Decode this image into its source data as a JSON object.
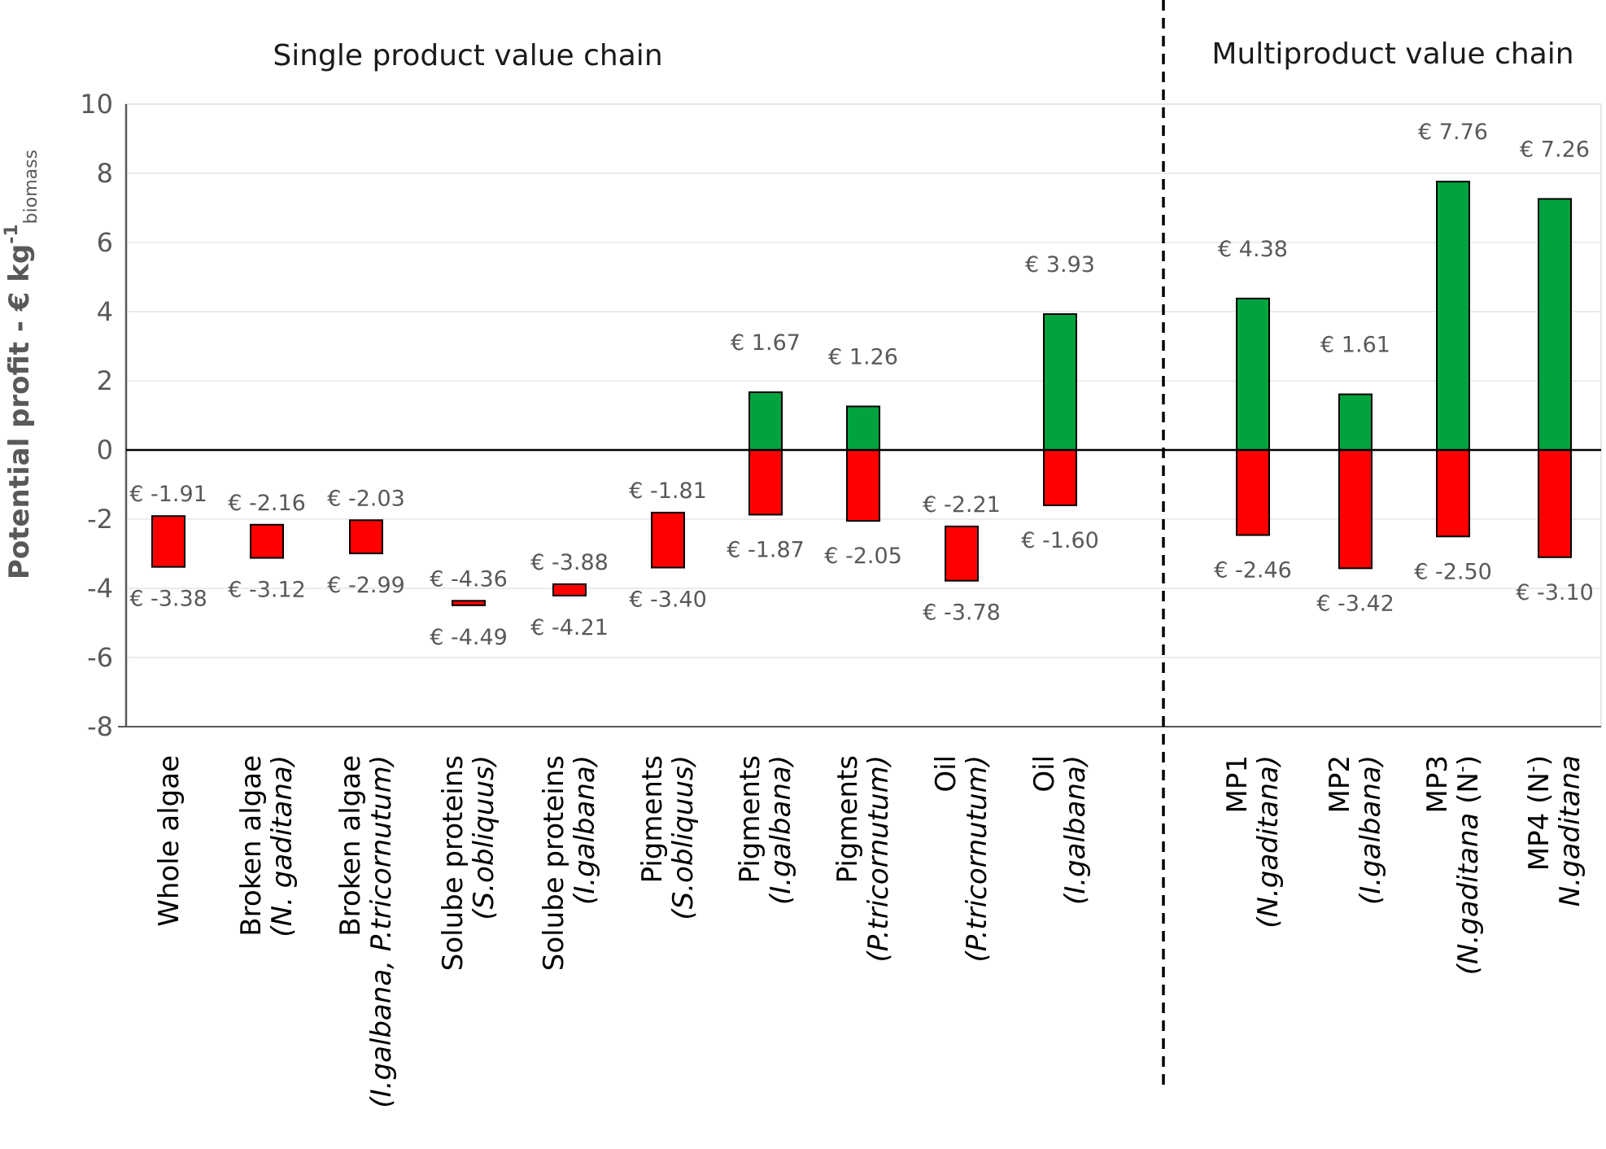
{
  "chart_data": {
    "type": "bar",
    "subtype": "floating-range",
    "ylabel": {
      "main": "Potential profit - € kg",
      "sup": "-1",
      "sub": "biomass"
    },
    "ylim": [
      -8,
      10
    ],
    "yticks": [
      10,
      8,
      6,
      4,
      2,
      0,
      -2,
      -4,
      -6,
      -8
    ],
    "currency_prefix": "€ ",
    "sections": [
      {
        "title": "Single product value chain",
        "first": 0,
        "last": 9
      },
      {
        "title": "Multiproduct value chain",
        "first": 10,
        "last": 13
      }
    ],
    "colors": {
      "positive": "#00a33d",
      "negative": "#ff0000",
      "outline": "#000000",
      "grid": "#e6e6e6",
      "axis": "#595959"
    },
    "categories": [
      {
        "lines": [
          [
            {
              "t": "Whole algae",
              "i": false
            }
          ]
        ],
        "low": -3.38,
        "high": -1.91
      },
      {
        "lines": [
          [
            {
              "t": "Broken algae",
              "i": false
            }
          ],
          [
            {
              "t": "(N. gaditana)",
              "i": true
            }
          ]
        ],
        "low": -3.12,
        "high": -2.16
      },
      {
        "lines": [
          [
            {
              "t": "Broken algae",
              "i": false
            }
          ],
          [
            {
              "t": "(I.galbana, P.tricornutum)",
              "i": true
            }
          ]
        ],
        "low": -2.99,
        "high": -2.03
      },
      {
        "lines": [
          [
            {
              "t": "Solube proteins",
              "i": false
            }
          ],
          [
            {
              "t": "(S.obliquus)",
              "i": true
            }
          ]
        ],
        "low": -4.49,
        "high": -4.36
      },
      {
        "lines": [
          [
            {
              "t": "Solube proteins",
              "i": false
            }
          ],
          [
            {
              "t": "(I.galbana)",
              "i": true
            }
          ]
        ],
        "low": -4.21,
        "high": -3.88
      },
      {
        "lines": [
          [
            {
              "t": "Pigments",
              "i": false
            }
          ],
          [
            {
              "t": "(S.obliquus)",
              "i": true
            }
          ]
        ],
        "low": -3.4,
        "high": -1.81
      },
      {
        "lines": [
          [
            {
              "t": "Pigments",
              "i": false
            }
          ],
          [
            {
              "t": "(I.galbana)",
              "i": true
            }
          ]
        ],
        "low": -1.87,
        "high": 1.67
      },
      {
        "lines": [
          [
            {
              "t": "Pigments",
              "i": false
            }
          ],
          [
            {
              "t": "(P.tricornutum)",
              "i": true
            }
          ]
        ],
        "low": -2.05,
        "high": 1.26
      },
      {
        "lines": [
          [
            {
              "t": "Oil",
              "i": false
            }
          ],
          [
            {
              "t": "(P.tricornutum)",
              "i": true
            }
          ]
        ],
        "low": -3.78,
        "high": -2.21
      },
      {
        "lines": [
          [
            {
              "t": "Oil",
              "i": false
            }
          ],
          [
            {
              "t": "(I.galbana)",
              "i": true
            }
          ]
        ],
        "low": -1.6,
        "high": 3.93
      },
      {
        "lines": [
          [
            {
              "t": "MP1",
              "i": false
            }
          ],
          [
            {
              "t": "(N.gaditana)",
              "i": true
            }
          ]
        ],
        "low": -2.46,
        "high": 4.38
      },
      {
        "lines": [
          [
            {
              "t": "MP2",
              "i": false
            }
          ],
          [
            {
              "t": "(I.galbana)",
              "i": true
            }
          ]
        ],
        "low": -3.42,
        "high": 1.61
      },
      {
        "lines": [
          [
            {
              "t": "MP3",
              "i": false
            }
          ],
          [
            {
              "t": "(N.gaditana",
              "i": true
            },
            {
              "t": " (N",
              "i": false
            },
            {
              "t": "-",
              "i": false,
              "sup": true
            },
            {
              "t": ")",
              "i": false
            }
          ]
        ],
        "low": -2.5,
        "high": 7.76
      },
      {
        "lines": [
          [
            {
              "t": "MP4",
              "i": false
            },
            {
              "t": " (N",
              "i": false
            },
            {
              "t": "-",
              "i": false,
              "sup": true
            },
            {
              "t": ")",
              "i": false
            }
          ],
          [
            {
              "t": "N.gaditana",
              "i": true
            }
          ]
        ],
        "low": -3.1,
        "high": 7.26
      }
    ]
  }
}
